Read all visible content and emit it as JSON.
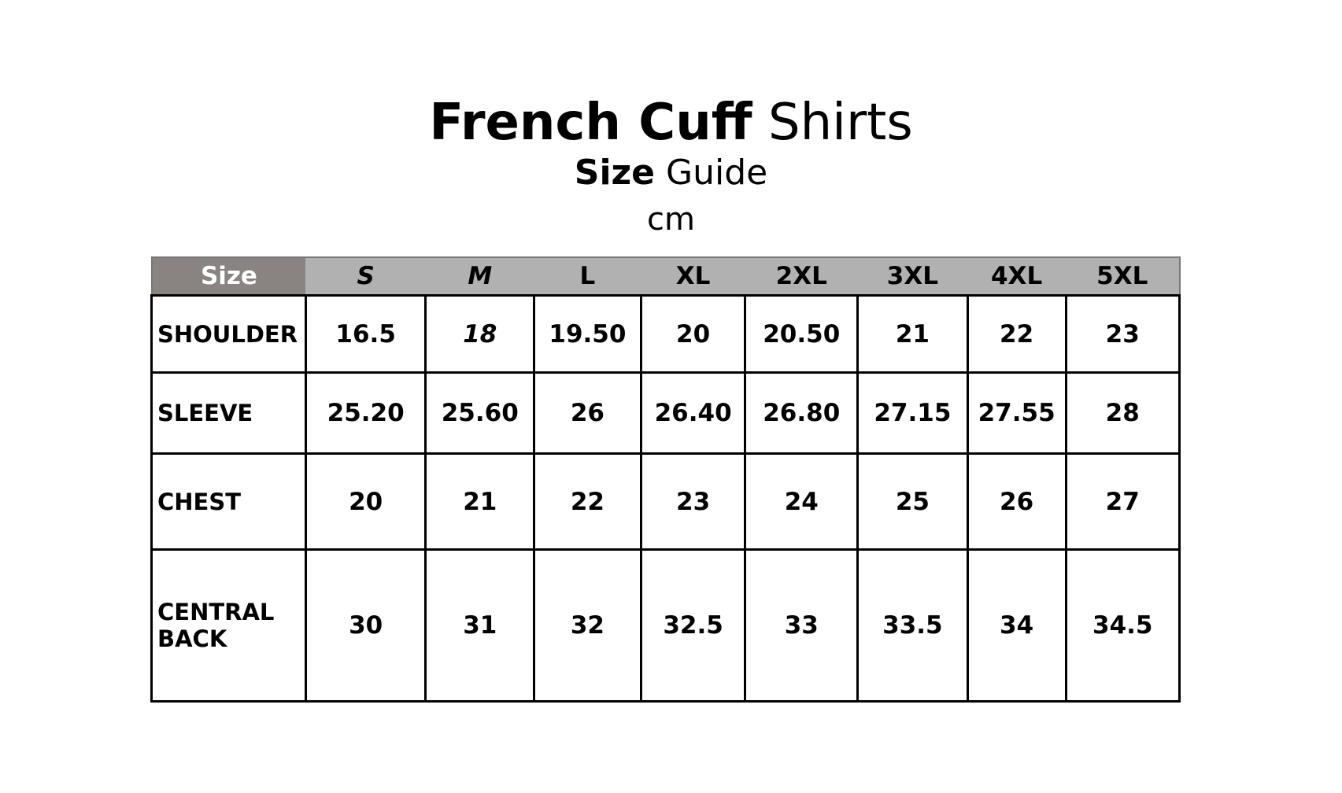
{
  "title": {
    "bold": "French Cuff",
    "light": "Shirts"
  },
  "subtitle": {
    "bold": "Size",
    "light": "Guide"
  },
  "unit": "cm",
  "table": {
    "header_label": "Size",
    "sizes": [
      "S",
      "M",
      "L",
      "XL",
      "2XL",
      "3XL",
      "4XL",
      "5XL"
    ],
    "rows": [
      {
        "label": "SHOULDER",
        "values": [
          "16.5",
          "18",
          "19.50",
          "20",
          "20.50",
          "21",
          "22",
          "23"
        ]
      },
      {
        "label": "SLEEVE",
        "values": [
          "25.20",
          "25.60",
          "26",
          "26.40",
          "26.80",
          "27.15",
          "27.55",
          "28"
        ]
      },
      {
        "label": "CHEST",
        "values": [
          "20",
          "21",
          "22",
          "23",
          "24",
          "25",
          "26",
          "27"
        ]
      },
      {
        "label": "CENTRAL BACK",
        "values": [
          "30",
          "31",
          "32",
          "32.5",
          "33",
          "33.5",
          "34",
          "34.5"
        ]
      }
    ]
  },
  "colors": {
    "header_label_bg": "#898382",
    "header_bg": "#b1b1b1"
  }
}
